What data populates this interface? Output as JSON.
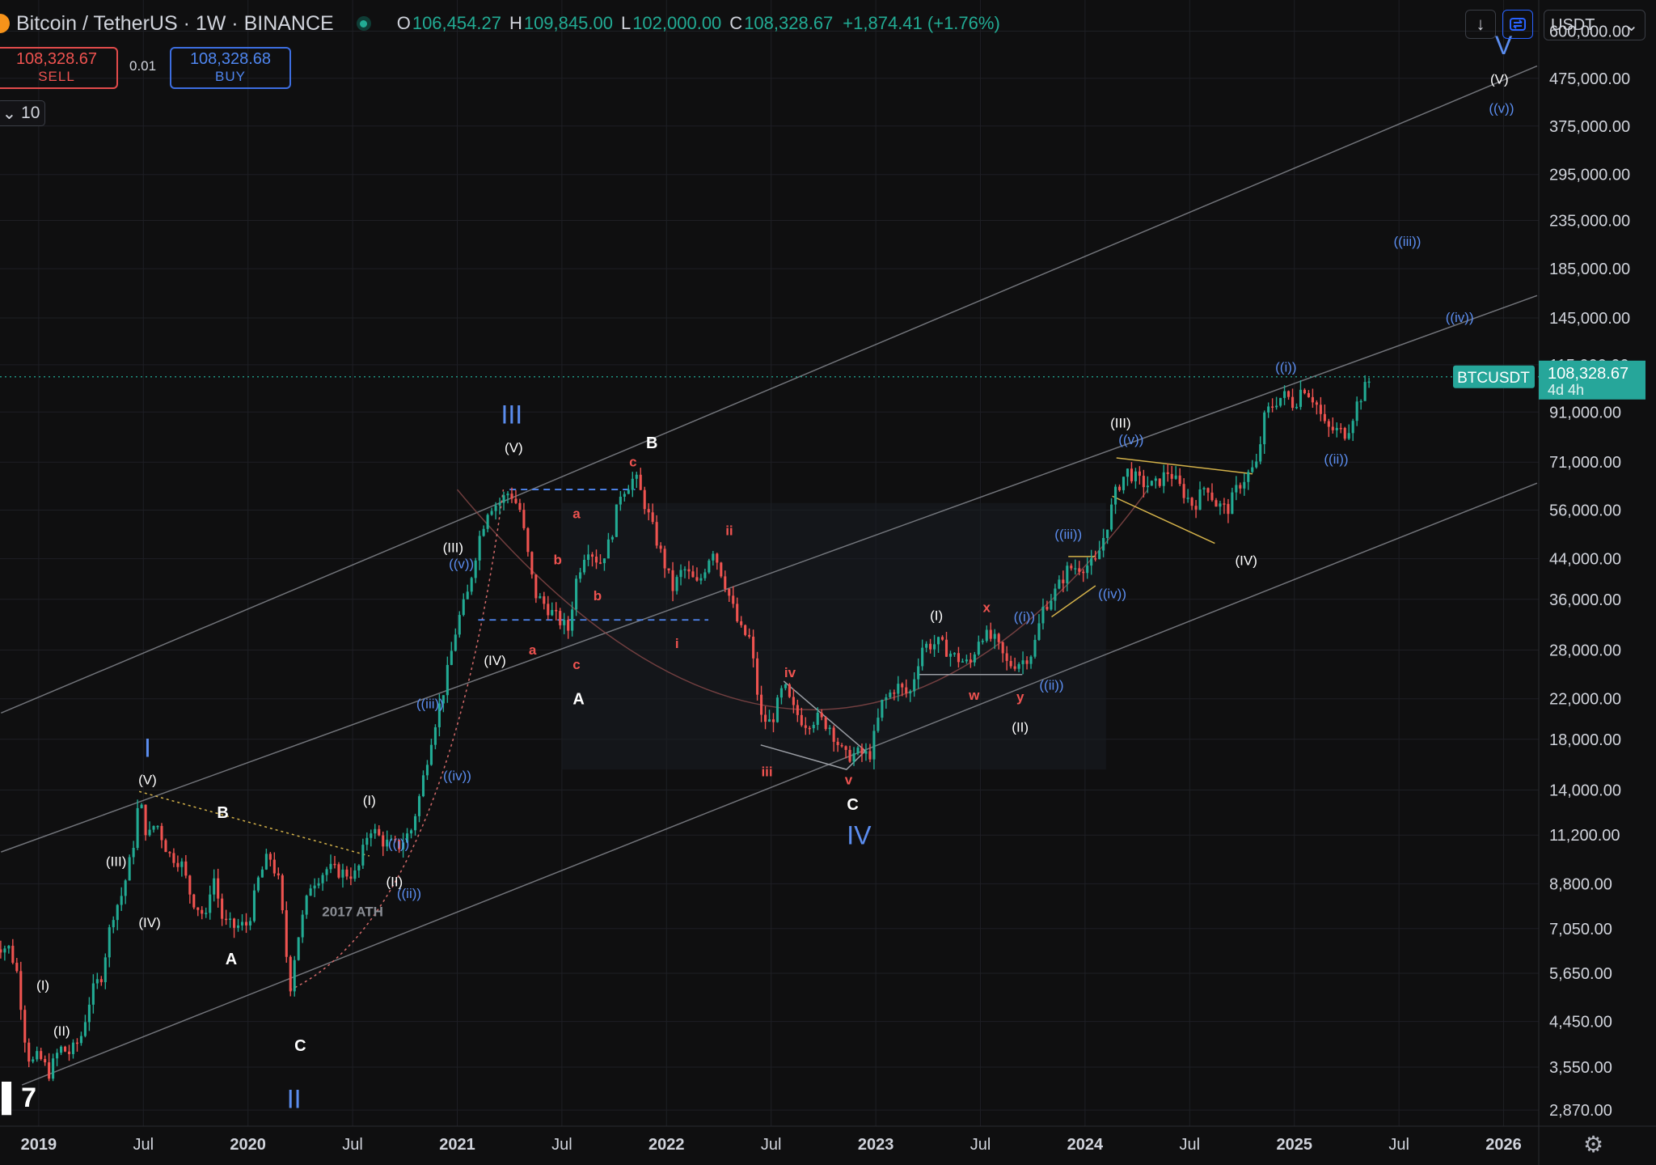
{
  "header": {
    "symbol": "Bitcoin / TetherUS · 1W · BINANCE",
    "o_label": "O",
    "o": "106,454.27",
    "h_label": "H",
    "h": "109,845.00",
    "l_label": "L",
    "l": "102,000.00",
    "c_label": "C",
    "c": "108,328.67",
    "change": "+1,874.41 (+1.76%)"
  },
  "trade": {
    "sell_price": "108,328.67",
    "sell_label": "SELL",
    "spread": "0.01",
    "buy_price": "108,328.68",
    "buy_label": "BUY"
  },
  "toolbar": {
    "interval": "10",
    "interval_icon": "chevron-down-icon",
    "download_icon": "arrow-down-icon",
    "sync_icon": "sync-icon",
    "currency": "USDT"
  },
  "colors": {
    "up": "#22ab94",
    "down": "#ef5350",
    "bg": "#0f0f10",
    "wave_blue": "#5b8def",
    "wave_white": "#ffffff",
    "wave_red": "#ef5350",
    "channel": "#8a8d94",
    "yellow": "#d4b24a"
  },
  "chart_data": {
    "type": "line",
    "title": "",
    "xlabel": "",
    "ylabel": "",
    "y_scale": "log",
    "ylim": [
      2650,
      700000
    ],
    "x_ticks": [
      {
        "t": 2019.0,
        "label": "2019",
        "bold": true
      },
      {
        "t": 2019.5,
        "label": "Jul"
      },
      {
        "t": 2020.0,
        "label": "2020",
        "bold": true
      },
      {
        "t": 2020.5,
        "label": "Jul"
      },
      {
        "t": 2021.0,
        "label": "2021",
        "bold": true
      },
      {
        "t": 2021.5,
        "label": "Jul"
      },
      {
        "t": 2022.0,
        "label": "2022",
        "bold": true
      },
      {
        "t": 2022.5,
        "label": "Jul"
      },
      {
        "t": 2023.0,
        "label": "2023",
        "bold": true
      },
      {
        "t": 2023.5,
        "label": "Jul"
      },
      {
        "t": 2024.0,
        "label": "2024",
        "bold": true
      },
      {
        "t": 2024.5,
        "label": "Jul"
      },
      {
        "t": 2025.0,
        "label": "2025",
        "bold": true
      },
      {
        "t": 2025.5,
        "label": "Jul"
      },
      {
        "t": 2026.0,
        "label": "2026",
        "bold": true
      }
    ],
    "y_ticks": [
      {
        "v": 600000,
        "label": "600,000.00"
      },
      {
        "v": 475000,
        "label": "475,000.00"
      },
      {
        "v": 375000,
        "label": "375,000.00"
      },
      {
        "v": 295000,
        "label": "295,000.00"
      },
      {
        "v": 235000,
        "label": "235,000.00"
      },
      {
        "v": 185000,
        "label": "185,000.00"
      },
      {
        "v": 145000,
        "label": "145,000.00"
      },
      {
        "v": 115000,
        "label": "115,000.00"
      },
      {
        "v": 91000,
        "label": "91,000.00"
      },
      {
        "v": 71000,
        "label": "71,000.00"
      },
      {
        "v": 56000,
        "label": "56,000.00"
      },
      {
        "v": 44000,
        "label": "44,000.00"
      },
      {
        "v": 36000,
        "label": "36,000.00"
      },
      {
        "v": 28000,
        "label": "28,000.00"
      },
      {
        "v": 22000,
        "label": "22,000.00"
      },
      {
        "v": 18000,
        "label": "18,000.00"
      },
      {
        "v": 14000,
        "label": "14,000.00"
      },
      {
        "v": 11200,
        "label": "11,200.00"
      },
      {
        "v": 8800,
        "label": "8,800.00"
      },
      {
        "v": 7050,
        "label": "7,050.00"
      },
      {
        "v": 5650,
        "label": "5,650.00"
      },
      {
        "v": 4450,
        "label": "4,450.00"
      },
      {
        "v": 3550,
        "label": "3,550.00"
      },
      {
        "v": 2870,
        "label": "2,870.00"
      }
    ],
    "series": [
      {
        "points": [
          [
            2018.78,
            6500
          ],
          [
            2018.86,
            6400
          ],
          [
            2018.9,
            5600
          ],
          [
            2018.93,
            4200
          ],
          [
            2018.96,
            3600
          ],
          [
            2019.0,
            3750
          ],
          [
            2019.05,
            3450
          ],
          [
            2019.1,
            3900
          ],
          [
            2019.15,
            3800
          ],
          [
            2019.2,
            4100
          ],
          [
            2019.25,
            5100
          ],
          [
            2019.3,
            5600
          ],
          [
            2019.35,
            7500
          ],
          [
            2019.4,
            8400
          ],
          [
            2019.45,
            10500
          ],
          [
            2019.48,
            13500
          ],
          [
            2019.52,
            11000
          ],
          [
            2019.56,
            12000
          ],
          [
            2019.62,
            10200
          ],
          [
            2019.68,
            9800
          ],
          [
            2019.73,
            8200
          ],
          [
            2019.8,
            7400
          ],
          [
            2019.83,
            9400
          ],
          [
            2019.88,
            7300
          ],
          [
            2019.93,
            7100
          ],
          [
            2020.0,
            7200
          ],
          [
            2020.05,
            9000
          ],
          [
            2020.1,
            10200
          ],
          [
            2020.15,
            8800
          ],
          [
            2020.2,
            5200
          ],
          [
            2020.23,
            6500
          ],
          [
            2020.3,
            8800
          ],
          [
            2020.38,
            9500
          ],
          [
            2020.45,
            9300
          ],
          [
            2020.52,
            9200
          ],
          [
            2020.58,
            11700
          ],
          [
            2020.65,
            10800
          ],
          [
            2020.72,
            10600
          ],
          [
            2020.78,
            11500
          ],
          [
            2020.82,
            13600
          ],
          [
            2020.88,
            18500
          ],
          [
            2020.94,
            23500
          ],
          [
            2021.0,
            32000
          ],
          [
            2021.05,
            37000
          ],
          [
            2021.1,
            48000
          ],
          [
            2021.15,
            57000
          ],
          [
            2021.2,
            58000
          ],
          [
            2021.25,
            61500
          ],
          [
            2021.3,
            56000
          ],
          [
            2021.37,
            37000
          ],
          [
            2021.42,
            35000
          ],
          [
            2021.47,
            33000
          ],
          [
            2021.53,
            31000
          ],
          [
            2021.57,
            40000
          ],
          [
            2021.62,
            47000
          ],
          [
            2021.68,
            43000
          ],
          [
            2021.73,
            48000
          ],
          [
            2021.78,
            61000
          ],
          [
            2021.85,
            66000
          ],
          [
            2021.9,
            57000
          ],
          [
            2021.96,
            47000
          ],
          [
            2022.03,
            38000
          ],
          [
            2022.08,
            42000
          ],
          [
            2022.15,
            38500
          ],
          [
            2022.22,
            46500
          ],
          [
            2022.28,
            39000
          ],
          [
            2022.35,
            31000
          ],
          [
            2022.4,
            29500
          ],
          [
            2022.45,
            20000
          ],
          [
            2022.5,
            19500
          ],
          [
            2022.56,
            23500
          ],
          [
            2022.6,
            21000
          ],
          [
            2022.66,
            19500
          ],
          [
            2022.72,
            20000
          ],
          [
            2022.78,
            19200
          ],
          [
            2022.85,
            16500
          ],
          [
            2022.92,
            16800
          ],
          [
            2022.97,
            16600
          ],
          [
            2023.03,
            21500
          ],
          [
            2023.1,
            23500
          ],
          [
            2023.16,
            22300
          ],
          [
            2023.22,
            28500
          ],
          [
            2023.3,
            29000
          ],
          [
            2023.38,
            27000
          ],
          [
            2023.45,
            26000
          ],
          [
            2023.5,
            30500
          ],
          [
            2023.57,
            29300
          ],
          [
            2023.63,
            26000
          ],
          [
            2023.7,
            26500
          ],
          [
            2023.75,
            27800
          ],
          [
            2023.8,
            34500
          ],
          [
            2023.86,
            37500
          ],
          [
            2023.92,
            42000
          ],
          [
            2024.0,
            42500
          ],
          [
            2024.05,
            43000
          ],
          [
            2024.1,
            51000
          ],
          [
            2024.15,
            62000
          ],
          [
            2024.2,
            68000
          ],
          [
            2024.27,
            64000
          ],
          [
            2024.33,
            63000
          ],
          [
            2024.4,
            68000
          ],
          [
            2024.46,
            62000
          ],
          [
            2024.52,
            57000
          ],
          [
            2024.58,
            64000
          ],
          [
            2024.62,
            58000
          ],
          [
            2024.68,
            56000
          ],
          [
            2024.73,
            63000
          ],
          [
            2024.78,
            67000
          ],
          [
            2024.82,
            70000
          ],
          [
            2024.86,
            90000
          ],
          [
            2024.92,
            97000
          ],
          [
            2024.96,
            99000
          ],
          [
            2025.0,
            94000
          ],
          [
            2025.04,
            104000
          ],
          [
            2025.1,
            96000
          ],
          [
            2025.15,
            84000
          ],
          [
            2025.2,
            83000
          ],
          [
            2025.25,
            82000
          ],
          [
            2025.3,
            95000
          ],
          [
            2025.34,
            103000
          ],
          [
            2025.37,
            108328.67
          ]
        ]
      }
    ],
    "last_price": {
      "symbol": "BTCUSDT",
      "value": 108328.67,
      "price_label": "108,328.67",
      "countdown": "4d 4h"
    },
    "channels": [
      {
        "name": "upper",
        "points": [
          [
            2018.82,
            20500
          ],
          [
            2026.16,
            505000
          ]
        ]
      },
      {
        "name": "middle",
        "points": [
          [
            2018.82,
            10300
          ],
          [
            2026.16,
            162000
          ]
        ]
      },
      {
        "name": "lower",
        "points": [
          [
            2018.92,
            3250
          ],
          [
            2026.16,
            64000
          ]
        ]
      }
    ],
    "annotations": [
      {
        "t": 2020.5,
        "v": 7500,
        "text": "2017 ATH",
        "color": "grey"
      },
      {
        "t": 2019.52,
        "v": 16500,
        "text": "I",
        "color": "blue",
        "size": "big"
      },
      {
        "t": 2020.22,
        "v": 2900,
        "text": "II",
        "color": "blue",
        "size": "big"
      },
      {
        "t": 2021.26,
        "v": 86000,
        "text": "III",
        "color": "blue",
        "size": "big"
      },
      {
        "t": 2022.92,
        "v": 10700,
        "text": "IV",
        "color": "blue",
        "size": "big"
      },
      {
        "t": 2026.0,
        "v": 535000,
        "text": "V",
        "color": "blue",
        "size": "big"
      },
      {
        "t": 2019.02,
        "v": 5200,
        "text": "(I)",
        "color": "white"
      },
      {
        "t": 2019.11,
        "v": 4150,
        "text": "(II)",
        "color": "white"
      },
      {
        "t": 2019.37,
        "v": 9600,
        "text": "(III)",
        "color": "white"
      },
      {
        "t": 2019.53,
        "v": 7100,
        "text": "(IV)",
        "color": "white"
      },
      {
        "t": 2019.52,
        "v": 14400,
        "text": "(V)",
        "color": "white"
      },
      {
        "t": 2019.88,
        "v": 12200,
        "text": "B",
        "color": "white"
      },
      {
        "t": 2019.92,
        "v": 5900,
        "text": "A",
        "color": "white"
      },
      {
        "t": 2020.25,
        "v": 3850,
        "text": "C",
        "color": "white"
      },
      {
        "t": 2020.58,
        "v": 13000,
        "text": "(I)",
        "color": "white"
      },
      {
        "t": 2020.7,
        "v": 8700,
        "text": "(II)",
        "color": "white"
      },
      {
        "t": 2020.72,
        "v": 10500,
        "text": "((i))",
        "color": "blue"
      },
      {
        "t": 2020.77,
        "v": 8200,
        "text": "((ii))",
        "color": "blue"
      },
      {
        "t": 2020.87,
        "v": 21000,
        "text": "((iii))",
        "color": "blue"
      },
      {
        "t": 2021.0,
        "v": 14700,
        "text": "((iv))",
        "color": "blue"
      },
      {
        "t": 2020.98,
        "v": 45500,
        "text": "(III)",
        "color": "white"
      },
      {
        "t": 2021.02,
        "v": 42000,
        "text": "((v))",
        "color": "blue"
      },
      {
        "t": 2021.18,
        "v": 26000,
        "text": "(IV)",
        "color": "white"
      },
      {
        "t": 2021.27,
        "v": 74500,
        "text": "(V)",
        "color": "white"
      },
      {
        "t": 2021.36,
        "v": 27400,
        "text": "a",
        "color": "red"
      },
      {
        "t": 2021.48,
        "v": 42800,
        "text": "b",
        "color": "red"
      },
      {
        "t": 2021.57,
        "v": 53800,
        "text": "a",
        "color": "red"
      },
      {
        "t": 2021.57,
        "v": 25500,
        "text": "c",
        "color": "red"
      },
      {
        "t": 2021.67,
        "v": 35800,
        "text": "b",
        "color": "red"
      },
      {
        "t": 2021.84,
        "v": 69500,
        "text": "c",
        "color": "red"
      },
      {
        "t": 2021.93,
        "v": 76000,
        "text": "B",
        "color": "white"
      },
      {
        "t": 2021.58,
        "v": 21400,
        "text": "A",
        "color": "white"
      },
      {
        "t": 2022.05,
        "v": 28300,
        "text": "i",
        "color": "red"
      },
      {
        "t": 2022.3,
        "v": 49500,
        "text": "ii",
        "color": "red"
      },
      {
        "t": 2022.48,
        "v": 15000,
        "text": "iii",
        "color": "red"
      },
      {
        "t": 2022.59,
        "v": 24500,
        "text": "iv",
        "color": "red"
      },
      {
        "t": 2022.87,
        "v": 14400,
        "text": "v",
        "color": "red"
      },
      {
        "t": 2022.89,
        "v": 12700,
        "text": "C",
        "color": "white"
      },
      {
        "t": 2023.29,
        "v": 32500,
        "text": "(I)",
        "color": "white"
      },
      {
        "t": 2023.47,
        "v": 21900,
        "text": "w",
        "color": "red"
      },
      {
        "t": 2023.53,
        "v": 33800,
        "text": "x",
        "color": "red"
      },
      {
        "t": 2023.69,
        "v": 21700,
        "text": "y",
        "color": "red"
      },
      {
        "t": 2023.69,
        "v": 18700,
        "text": "(II)",
        "color": "white"
      },
      {
        "t": 2023.71,
        "v": 32300,
        "text": "((i))",
        "color": "blue"
      },
      {
        "t": 2023.84,
        "v": 23000,
        "text": "((ii))",
        "color": "blue"
      },
      {
        "t": 2023.92,
        "v": 48600,
        "text": "((iii))",
        "color": "blue"
      },
      {
        "t": 2024.13,
        "v": 36200,
        "text": "((iv))",
        "color": "blue"
      },
      {
        "t": 2024.17,
        "v": 84200,
        "text": "(III)",
        "color": "white"
      },
      {
        "t": 2024.22,
        "v": 77600,
        "text": "((v))",
        "color": "blue"
      },
      {
        "t": 2024.77,
        "v": 42600,
        "text": "(IV)",
        "color": "white"
      },
      {
        "t": 2024.96,
        "v": 111000,
        "text": "((i))",
        "color": "blue"
      },
      {
        "t": 2025.2,
        "v": 70500,
        "text": "((ii))",
        "color": "blue"
      },
      {
        "t": 2025.54,
        "v": 207000,
        "text": "((iii))",
        "color": "blue"
      },
      {
        "t": 2025.79,
        "v": 142000,
        "text": "((iv))",
        "color": "blue"
      },
      {
        "t": 2025.99,
        "v": 400000,
        "text": "((v))",
        "color": "blue"
      },
      {
        "t": 2025.98,
        "v": 462000,
        "text": "(V)",
        "color": "white"
      }
    ]
  }
}
